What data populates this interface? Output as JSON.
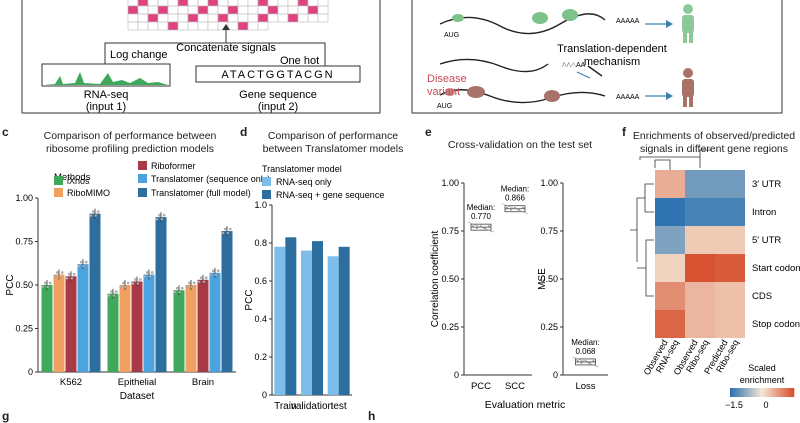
{
  "top_left": {
    "concat_label": "Concatenate signals",
    "log_change": "Log change",
    "one_hot": "One hot",
    "rnaseq_label": "RNA-seq",
    "rnaseq_sub": "(input 1)",
    "sequence": "ATACTGGTACGN",
    "gene_seq_label": "Gene sequence",
    "gene_seq_sub": "(input 2)"
  },
  "top_right": {
    "aug1": "AUG",
    "aug2": "AUG",
    "polyA1": "AAAAA",
    "polyA2": "AAAAA",
    "polyA3": "AAAAA",
    "polyA4": "AAAAA",
    "mechanism_l1": "Translation-dependent",
    "mechanism_l2": "mechanism",
    "variant_l1": "Disease",
    "variant_l2": "variant"
  },
  "panel_labels": {
    "c": "c",
    "d": "d",
    "e": "e",
    "f": "f",
    "g": "g",
    "h": "h"
  },
  "panel_c": {
    "title_l1": "Comparison of performance between",
    "title_l2": "ribosome profiling prediction models",
    "legend_title": "Methods",
    "colors": {
      "iXnos": "#3fa85b",
      "RiboMIMO": "#f0a060",
      "Riboformer": "#a83a48",
      "Translatomer (sequence only)": "#4ba3df",
      "Translatomer (full model)": "#2e6e9e"
    },
    "chart_data": {
      "type": "bar",
      "categories": [
        "K562",
        "Epithelial",
        "Brain"
      ],
      "series": [
        {
          "name": "iXnos",
          "values": [
            0.5,
            0.45,
            0.47
          ]
        },
        {
          "name": "RiboMIMO",
          "values": [
            0.56,
            0.5,
            0.5
          ]
        },
        {
          "name": "Riboformer",
          "values": [
            0.55,
            0.52,
            0.53
          ]
        },
        {
          "name": "Translatomer (sequence only)",
          "values": [
            0.62,
            0.56,
            0.57
          ]
        },
        {
          "name": "Translatomer (full model)",
          "values": [
            0.91,
            0.89,
            0.81
          ]
        }
      ],
      "xlabel": "Dataset",
      "ylabel": "PCC",
      "ylim": [
        0,
        1.0
      ],
      "yticks": [
        "0",
        "0.25",
        "0.50",
        "0.75",
        "1.00"
      ]
    }
  },
  "panel_d": {
    "title_l1": "Comparison of performance",
    "title_l2": "between Translatomer models",
    "legend_title": "Translatomer model",
    "colors": {
      "RNA-seq only": "#7cbde9",
      "RNA-seq + gene sequence": "#2e6e9e"
    },
    "chart_data": {
      "type": "bar",
      "categories": [
        "Train",
        "validation",
        "test"
      ],
      "series": [
        {
          "name": "RNA-seq only",
          "values": [
            0.78,
            0.76,
            0.73
          ]
        },
        {
          "name": "RNA-seq + gene sequence",
          "values": [
            0.83,
            0.81,
            0.78
          ]
        }
      ],
      "ylabel": "PCC",
      "ylim": [
        0,
        1.0
      ],
      "yticks": [
        "0",
        "0.2",
        "0.4",
        "0.6",
        "0.8",
        "1.0"
      ]
    }
  },
  "panel_e": {
    "title": "Cross-validation on the test set",
    "xlabel": "Evaluation metric",
    "chart_data": [
      {
        "type": "box",
        "categories": [
          "PCC",
          "SCC"
        ],
        "medians": [
          0.77,
          0.866
        ],
        "annotations": [
          "Median:",
          "0.770",
          "Median:",
          "0.866"
        ],
        "ylabel": "Correlation coefficient",
        "ylim": [
          0,
          1.0
        ],
        "yticks": [
          "0",
          "0.25",
          "0.50",
          "0.75",
          "1.00"
        ]
      },
      {
        "type": "box",
        "categories": [
          "Loss"
        ],
        "medians": [
          0.068
        ],
        "annotations": [
          "Median:",
          "0.068"
        ],
        "ylabel": "MSE",
        "ylim": [
          0,
          1.0
        ],
        "yticks": [
          "0",
          "0.25",
          "0.50",
          "0.75",
          "1.00"
        ]
      }
    ]
  },
  "panel_f": {
    "title_l1": "Enrichments of observed/predicted",
    "title_l2": "signals in different gene regions",
    "colorbar_title_l1": "Scaled",
    "colorbar_title_l2": "enrichment",
    "colorbar_ticks": [
      "−1.5",
      "0"
    ],
    "chart_data": {
      "type": "heatmap",
      "rows": [
        "3′ UTR",
        "Intron",
        "5′ UTR",
        "Start codon",
        "CDS",
        "Stop codon"
      ],
      "columns": [
        "Observed RNA-seq",
        "Observed Ribo-seq",
        "Predicted Ribo-seq"
      ],
      "values": [
        [
          0.6,
          -1.0,
          -1.0
        ],
        [
          -1.5,
          -1.3,
          -1.3
        ],
        [
          -0.9,
          0.3,
          0.3
        ],
        [
          0.2,
          1.5,
          1.4
        ],
        [
          0.9,
          0.5,
          0.4
        ],
        [
          1.3,
          0.5,
          0.4
        ]
      ],
      "vmin": -1.5,
      "vmax": 1.5
    }
  }
}
